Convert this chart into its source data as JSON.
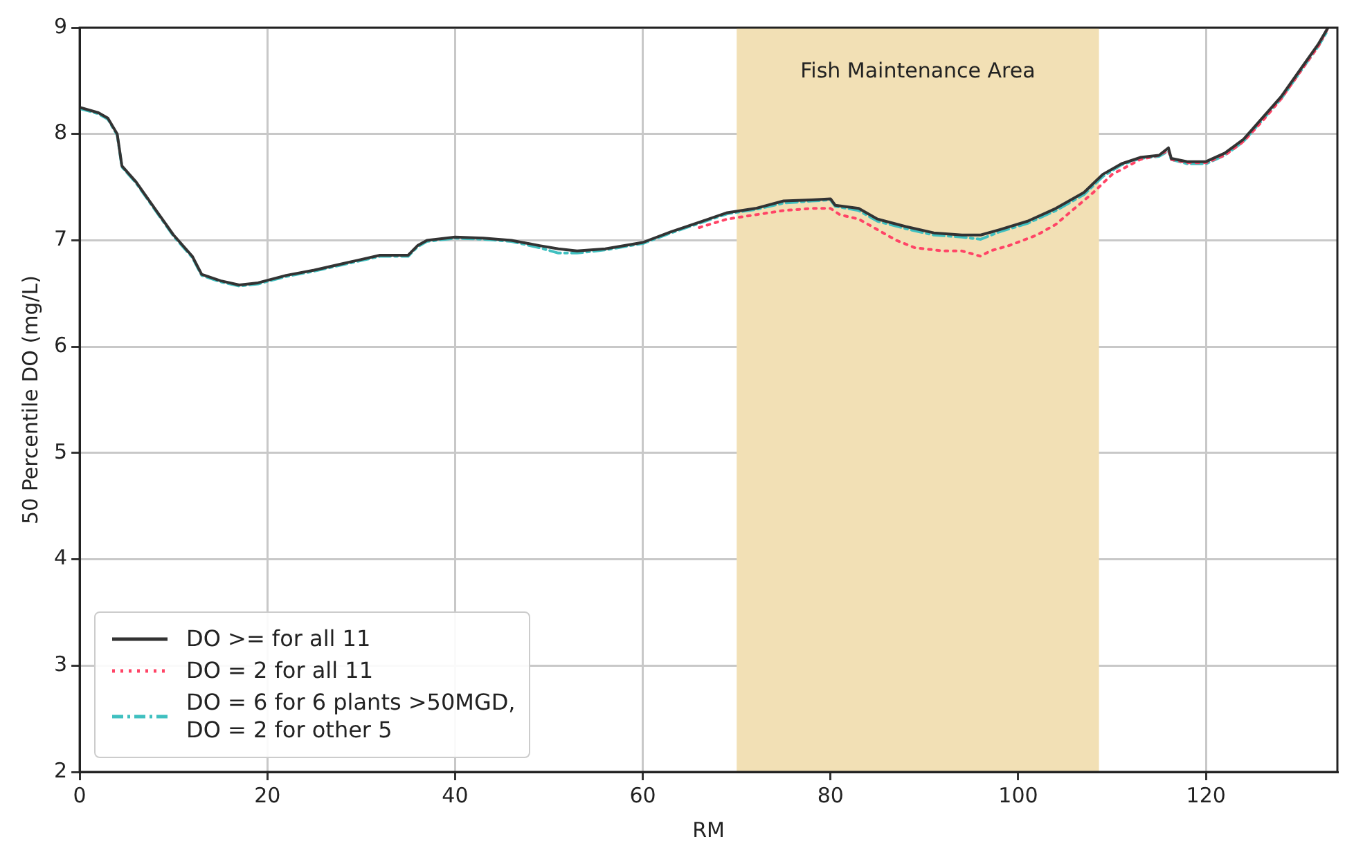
{
  "chart_data": {
    "type": "line",
    "xlabel": "RM",
    "ylabel": "50 Percentile DO (mg/L)",
    "xlim": [
      0,
      134
    ],
    "ylim": [
      2,
      9
    ],
    "xticks": [
      0,
      20,
      40,
      60,
      80,
      100,
      120
    ],
    "yticks": [
      2,
      3,
      4,
      5,
      6,
      7,
      8,
      9
    ],
    "grid": true,
    "legend": "bottom left",
    "marker": "none",
    "bands": [
      {
        "axis": "x",
        "from": 70,
        "to": 108.6,
        "label": "Fish Maintenance Area",
        "color": "#f2e0b5"
      }
    ],
    "series": [
      {
        "name": "DO >= for all 11",
        "color": "#333333",
        "line_style": "solid",
        "x": [
          0,
          2,
          3,
          4,
          4.5,
          6,
          8,
          10,
          12,
          13,
          15,
          17,
          19,
          22,
          25,
          28,
          30,
          32,
          35,
          36,
          37,
          40,
          43,
          46,
          49,
          51,
          53,
          56,
          60,
          63,
          66,
          69,
          72,
          75,
          78,
          80,
          80.5,
          83,
          85,
          88,
          91,
          94,
          96,
          98,
          101,
          104,
          107,
          109,
          111,
          113,
          115,
          116,
          116.3,
          118,
          120,
          122,
          124,
          126,
          128,
          130,
          132,
          133
        ],
        "values": [
          8.25,
          8.2,
          8.15,
          8.0,
          7.7,
          7.55,
          7.3,
          7.05,
          6.85,
          6.68,
          6.62,
          6.58,
          6.6,
          6.67,
          6.72,
          6.78,
          6.82,
          6.86,
          6.86,
          6.95,
          7.0,
          7.03,
          7.02,
          7.0,
          6.95,
          6.92,
          6.9,
          6.92,
          6.98,
          7.08,
          7.17,
          7.26,
          7.3,
          7.37,
          7.38,
          7.39,
          7.33,
          7.3,
          7.2,
          7.13,
          7.07,
          7.05,
          7.05,
          7.1,
          7.18,
          7.3,
          7.45,
          7.62,
          7.72,
          7.78,
          7.8,
          7.87,
          7.77,
          7.74,
          7.74,
          7.82,
          7.95,
          8.15,
          8.35,
          8.6,
          8.85,
          9.0
        ]
      },
      {
        "name": "DO = 2 for all 11",
        "color": "#ff4466",
        "line_style": "dotted",
        "x": [
          66,
          69,
          72,
          75,
          78,
          80,
          81,
          83,
          85,
          87,
          89,
          92,
          94,
          96,
          97,
          99,
          102,
          104,
          106,
          108,
          110,
          113,
          115,
          116,
          116.3,
          118,
          120,
          122,
          124,
          126,
          128,
          130,
          132,
          133
        ],
        "values": [
          7.12,
          7.2,
          7.24,
          7.28,
          7.3,
          7.3,
          7.24,
          7.2,
          7.1,
          7.0,
          6.93,
          6.9,
          6.9,
          6.85,
          6.9,
          6.95,
          7.05,
          7.15,
          7.3,
          7.45,
          7.62,
          7.76,
          7.8,
          7.85,
          7.76,
          7.73,
          7.73,
          7.8,
          7.93,
          8.12,
          8.33,
          8.58,
          8.83,
          9.0
        ]
      },
      {
        "name": "DO = 6 for 6 plants >50MGD,\nDO = 2 for other 5",
        "color": "#40c0c0",
        "line_style": "dashed",
        "x": [
          0,
          2,
          3,
          4,
          4.5,
          6,
          8,
          10,
          12,
          13,
          15,
          17,
          19,
          22,
          25,
          28,
          30,
          32,
          35,
          36,
          37,
          40,
          43,
          46,
          49,
          51,
          53,
          56,
          60,
          63,
          66,
          69,
          72,
          75,
          78,
          80,
          80.5,
          83,
          85,
          88,
          91,
          94,
          96,
          98,
          101,
          104,
          107,
          109,
          111,
          113,
          115,
          116,
          116.3,
          118,
          120,
          122,
          124,
          126,
          128,
          130,
          132,
          133
        ],
        "values": [
          8.24,
          8.19,
          8.14,
          7.99,
          7.69,
          7.54,
          7.29,
          7.04,
          6.84,
          6.67,
          6.61,
          6.57,
          6.59,
          6.66,
          6.71,
          6.77,
          6.81,
          6.85,
          6.85,
          6.94,
          6.99,
          7.02,
          7.01,
          6.99,
          6.93,
          6.88,
          6.88,
          6.91,
          6.97,
          7.07,
          7.16,
          7.25,
          7.29,
          7.35,
          7.37,
          7.38,
          7.32,
          7.28,
          7.18,
          7.11,
          7.05,
          7.03,
          7.01,
          7.08,
          7.16,
          7.28,
          7.43,
          7.6,
          7.71,
          7.77,
          7.79,
          7.84,
          7.76,
          7.72,
          7.72,
          7.8,
          7.93,
          8.13,
          8.33,
          8.58,
          8.83,
          8.98
        ]
      }
    ]
  }
}
